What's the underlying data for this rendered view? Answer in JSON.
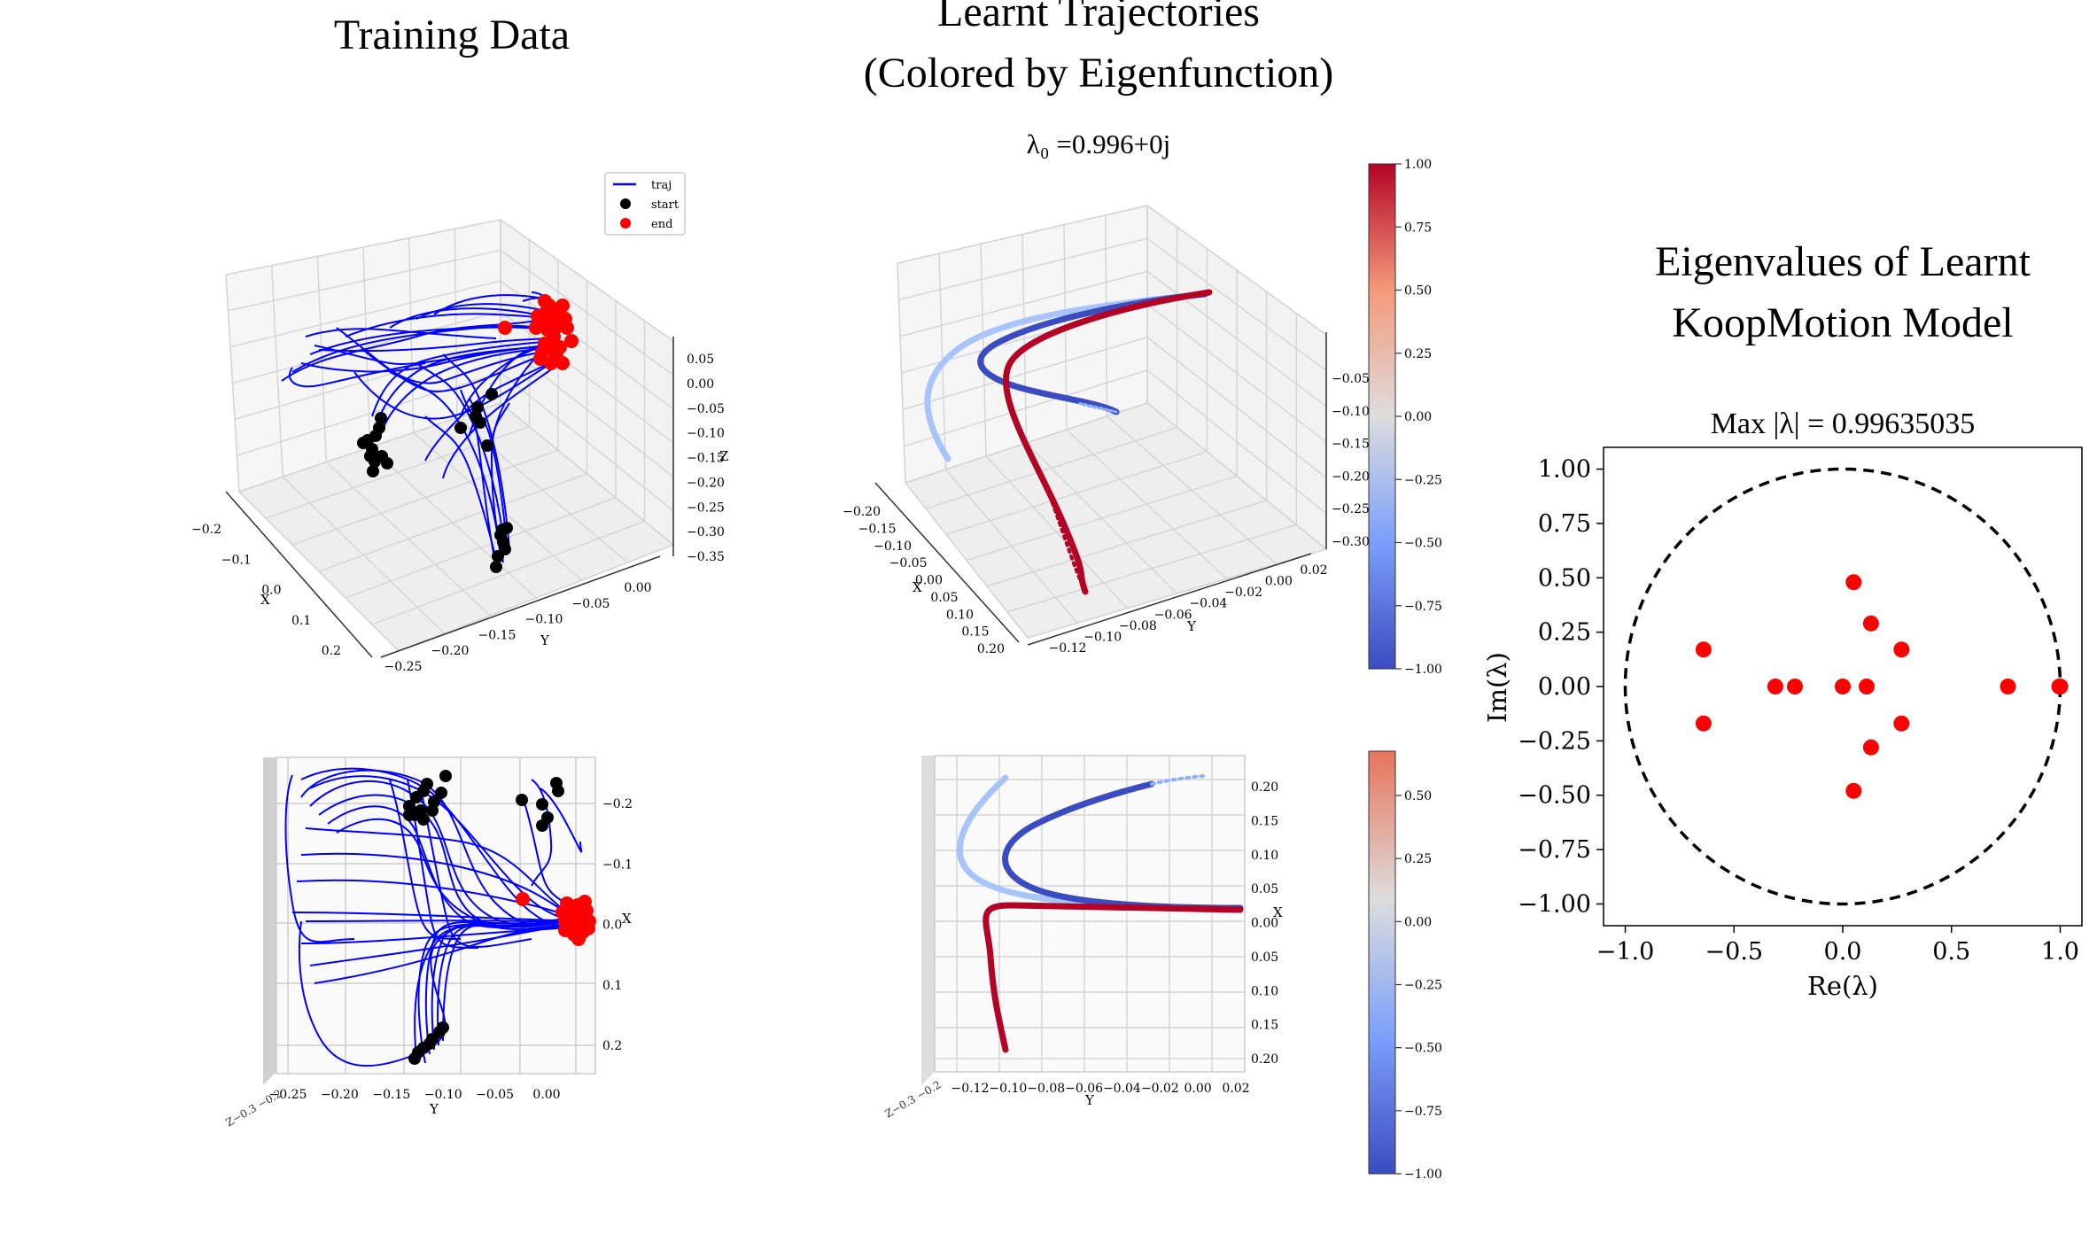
{
  "training": {
    "title": "Training Data",
    "legend": {
      "traj": "traj",
      "start": "start",
      "end": "end"
    },
    "axis3d": {
      "x_label": "X",
      "y_label": "Y",
      "z_label": "Z",
      "x_ticks": [
        "−0.2",
        "−0.1",
        "0.0",
        "0.1",
        "0.2"
      ],
      "y_ticks": [
        "−0.25",
        "−0.20",
        "−0.15",
        "−0.10",
        "−0.05",
        "0.00"
      ],
      "z_ticks": [
        "0.05",
        "0.00",
        "−0.05",
        "−0.10",
        "−0.15",
        "−0.20",
        "−0.25",
        "−0.30",
        "−0.35"
      ]
    },
    "axis_top": {
      "x_label": "Y",
      "y_label": "X",
      "x_ticks": [
        "−0.25",
        "−0.20",
        "−0.15",
        "−0.10",
        "−0.05",
        "0.00"
      ],
      "y_ticks": [
        "−0.2",
        "−0.1",
        "0.0",
        "0.1",
        "0.2"
      ]
    }
  },
  "learnt": {
    "title_line1": "Learnt Trajectories",
    "title_line2": "(Colored by Eigenfunction)",
    "subtitle": "λ₀ =0.996+0j",
    "axis3d": {
      "x_label": "X",
      "y_label": "Y",
      "x_ticks": [
        "−0.20",
        "−0.15",
        "−0.10",
        "−0.05",
        "0.00",
        "0.05",
        "0.10",
        "0.15",
        "0.20"
      ],
      "y_ticks": [
        "−0.12",
        "−0.10",
        "−0.08",
        "−0.06",
        "−0.04",
        "−0.02",
        "0.00",
        "0.02"
      ],
      "z_ticks": [
        "−0.05",
        "−0.10",
        "−0.15",
        "−0.20",
        "−0.25",
        "−0.30"
      ]
    },
    "axis_top": {
      "x_label": "Y",
      "y_label": "X",
      "x_ticks": [
        "−0.12",
        "−0.10",
        "−0.08",
        "−0.06",
        "−0.04",
        "−0.02",
        "0.00",
        "0.02"
      ],
      "y_ticks": [
        "0.20",
        "0.15",
        "0.10",
        "0.05",
        "0.00",
        "0.05",
        "0.10",
        "0.15",
        "0.20"
      ]
    },
    "colorbar_top": {
      "ticks": [
        "1.00",
        "0.75",
        "0.50",
        "0.25",
        "0.00",
        "−0.25",
        "−0.50",
        "−0.75",
        "−1.00"
      ]
    },
    "colorbar_bottom": {
      "ticks": [
        "0.50",
        "0.25",
        "0.00",
        "−0.25",
        "−0.50",
        "−0.75",
        "−1.00"
      ]
    }
  },
  "colors": {
    "traj": "#0000ff",
    "start": "#000000",
    "end": "#ff0000",
    "cold": "#3b4cc0",
    "hot": "#b40426"
  },
  "chart_data": [
    {
      "type": "scatter",
      "title": "Eigenvalues of Learnt KoopMotion Model",
      "title_line1": "Eigenvalues of Learnt",
      "title_line2": "KoopMotion Model",
      "subtitle": "Max |λ| = 0.99635035",
      "xlabel": "Re(λ)",
      "ylabel": "Im(λ)",
      "xlim": [
        -1.1,
        1.1
      ],
      "ylim": [
        -1.1,
        1.1
      ],
      "xticks": [
        -1.0,
        -0.5,
        0.0,
        0.5,
        1.0
      ],
      "xtick_labels": [
        "−1.0",
        "−0.5",
        "0.0",
        "0.5",
        "1.0"
      ],
      "yticks": [
        1.0,
        0.75,
        0.5,
        0.25,
        0.0,
        -0.25,
        -0.5,
        -0.75,
        -1.0
      ],
      "ytick_labels": [
        "1.00",
        "0.75",
        "0.50",
        "0.25",
        "0.00",
        "−0.25",
        "−0.50",
        "−0.75",
        "−1.00"
      ],
      "unit_circle": true,
      "points": [
        {
          "re": 0.05,
          "im": 0.48
        },
        {
          "re": 0.05,
          "im": -0.48
        },
        {
          "re": 0.13,
          "im": 0.29
        },
        {
          "re": 0.13,
          "im": -0.28
        },
        {
          "re": 0.27,
          "im": 0.17
        },
        {
          "re": 0.27,
          "im": -0.17
        },
        {
          "re": -0.64,
          "im": 0.17
        },
        {
          "re": -0.64,
          "im": -0.17
        },
        {
          "re": -0.31,
          "im": 0.0
        },
        {
          "re": -0.22,
          "im": 0.0
        },
        {
          "re": 0.0,
          "im": 0.0
        },
        {
          "re": 0.11,
          "im": 0.0
        },
        {
          "re": 0.76,
          "im": 0.0
        },
        {
          "re": 0.996,
          "im": 0.0
        },
        {
          "re": 1.0,
          "im": 0.0
        }
      ],
      "point_color": "#ff0000"
    }
  ]
}
